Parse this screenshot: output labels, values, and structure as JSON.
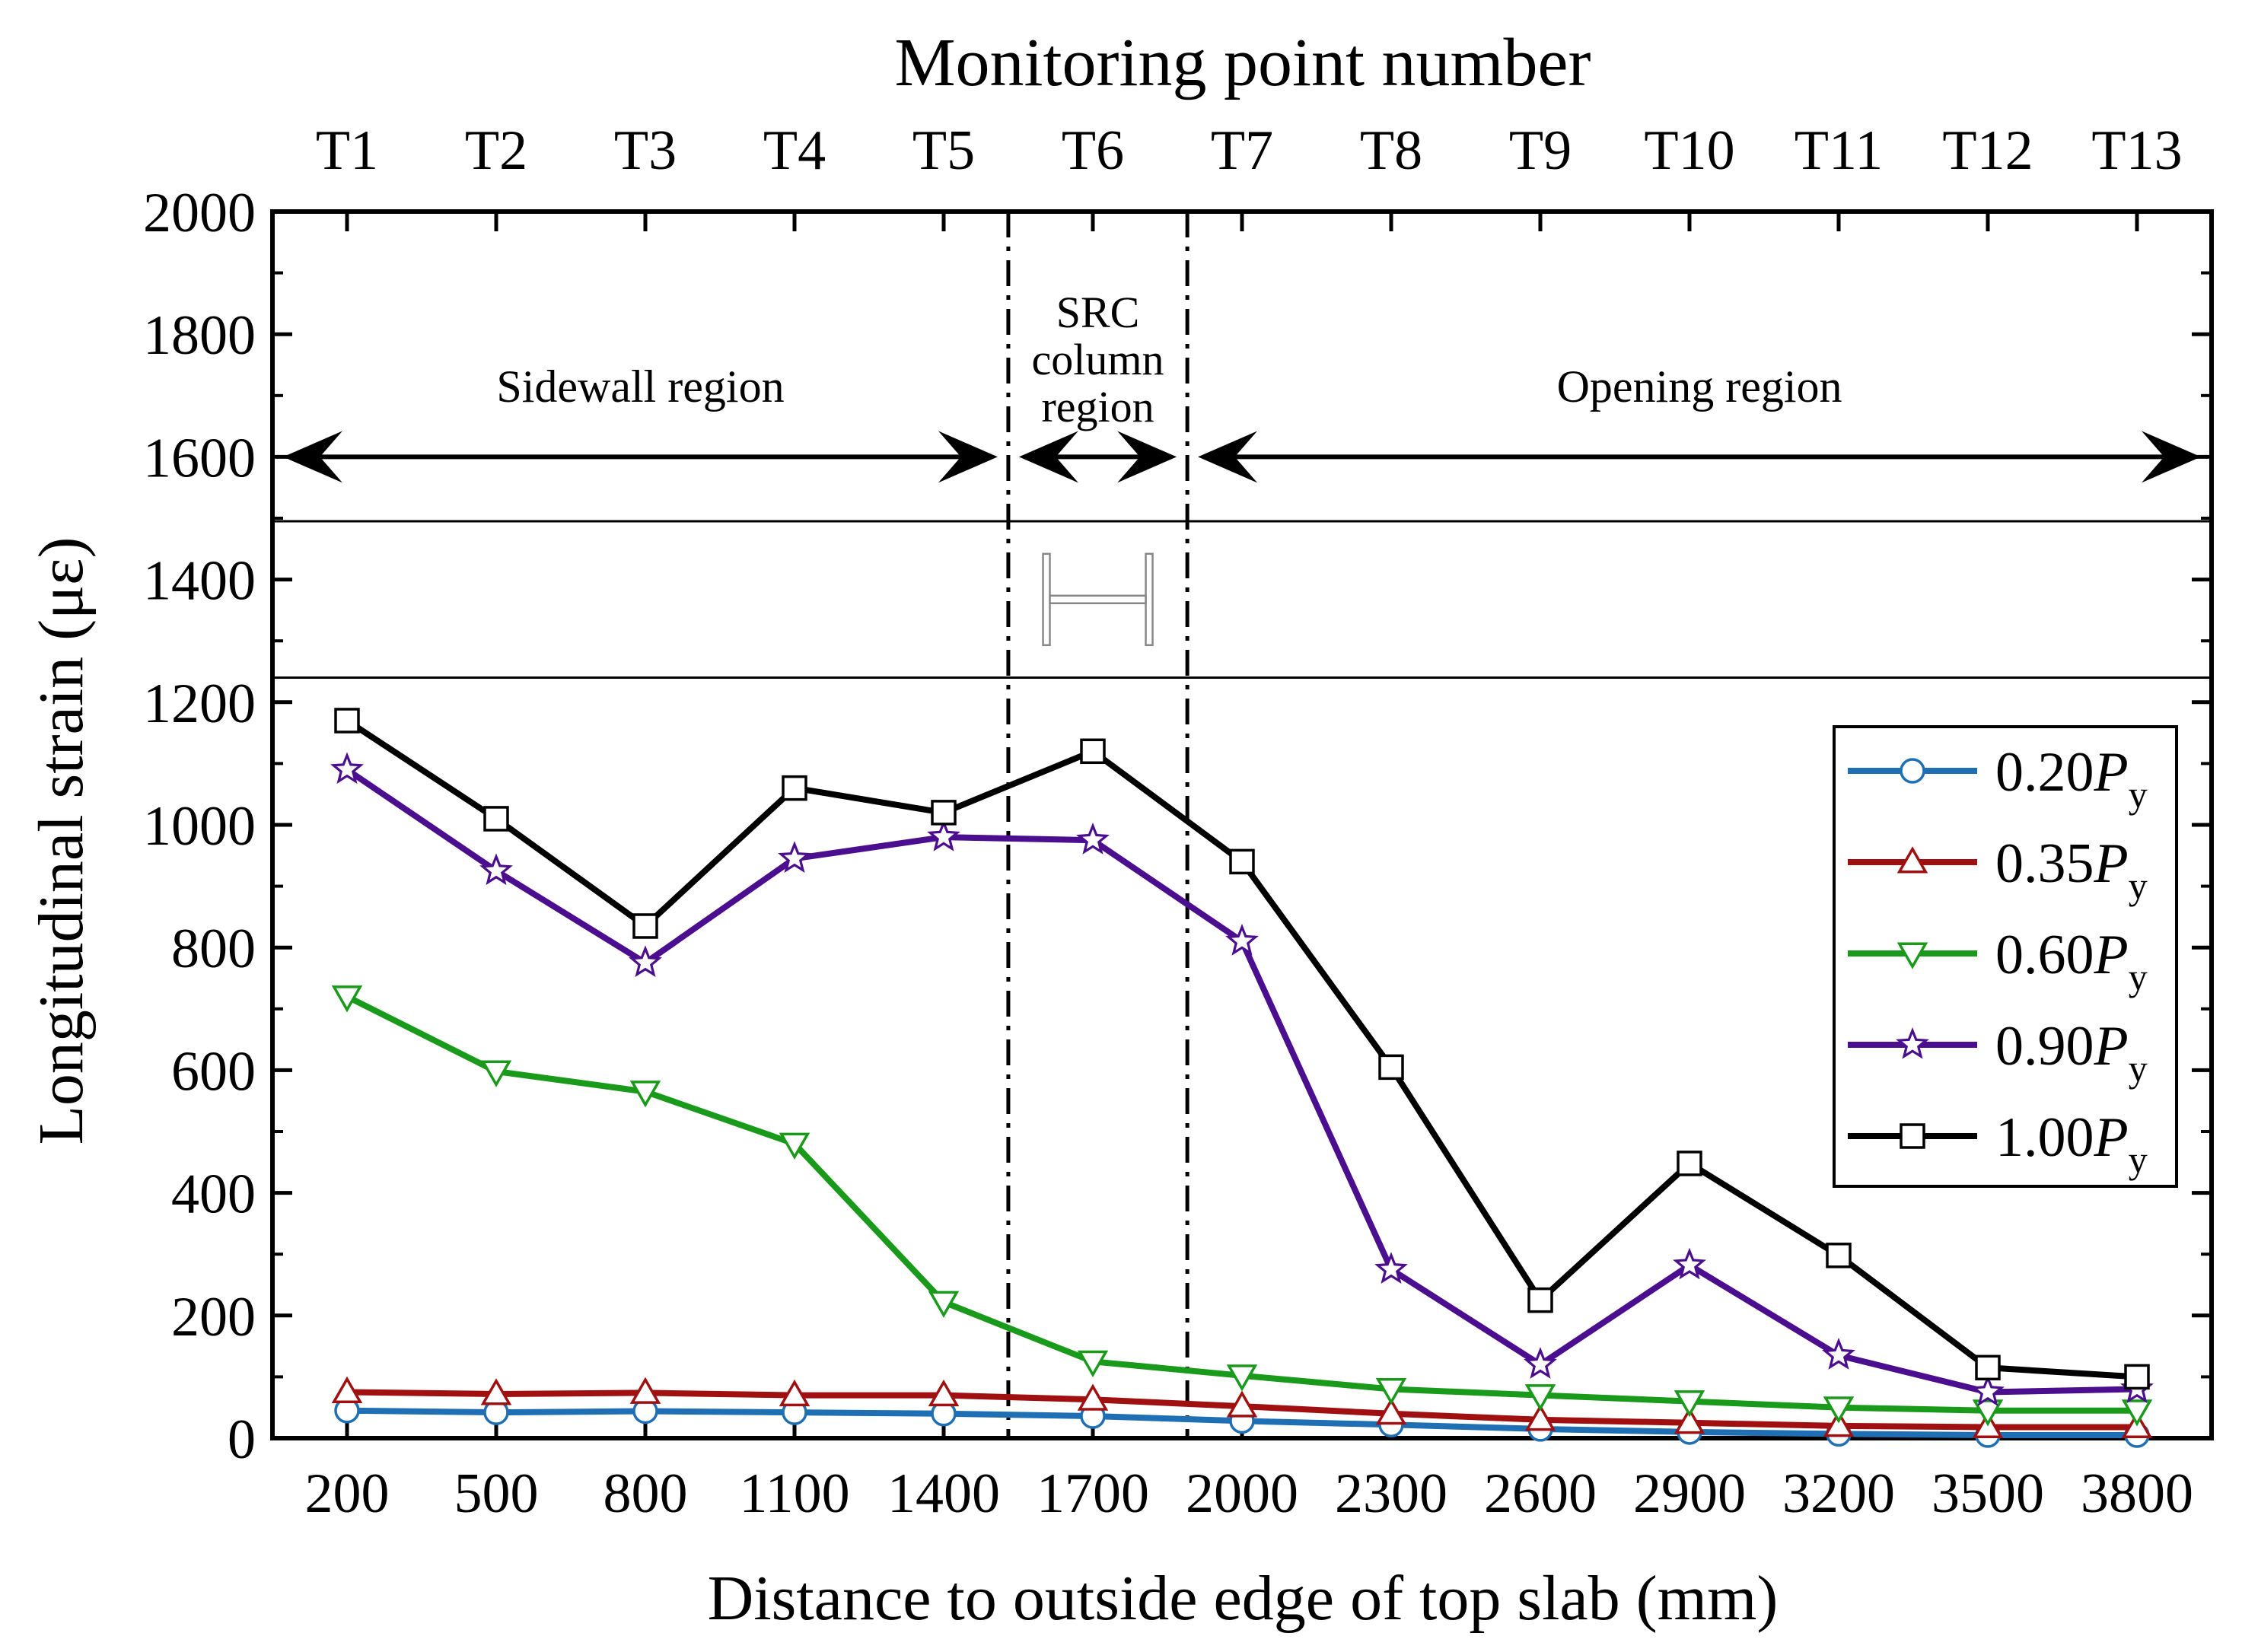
{
  "chart_data": {
    "type": "line",
    "title": "",
    "top_axis_title": "Monitoring point number",
    "top_tick_labels": [
      "T1",
      "T2",
      "T3",
      "T4",
      "T5",
      "T6",
      "T7",
      "T8",
      "T9",
      "T10",
      "T11",
      "T12",
      "T13"
    ],
    "xlabel": "Distance to outside edge of top slab (mm)",
    "ylabel": "Longitudinal strain (με)",
    "x": [
      200,
      500,
      800,
      1100,
      1400,
      1700,
      2000,
      2300,
      2600,
      2900,
      3200,
      3500,
      3800
    ],
    "x_tick_labels": [
      "200",
      "500",
      "800",
      "1100",
      "1400",
      "1700",
      "2000",
      "2300",
      "2600",
      "2900",
      "3200",
      "3500",
      "3800"
    ],
    "ylim": [
      0,
      2000
    ],
    "y_ticks": [
      0,
      200,
      400,
      600,
      800,
      1000,
      1200,
      1400,
      1600,
      1800,
      2000
    ],
    "grid": false,
    "legend_position": "right",
    "series": [
      {
        "name": "0.20",
        "name_symbol": "P",
        "name_subscript": "y",
        "color": "#1f6fb5",
        "marker": "circle",
        "values": [
          45,
          42,
          44,
          42,
          40,
          36,
          28,
          22,
          15,
          10,
          7,
          5,
          5
        ]
      },
      {
        "name": "0.35",
        "name_symbol": "P",
        "name_subscript": "y",
        "color": "#a01010",
        "marker": "triangle-up",
        "values": [
          75,
          72,
          74,
          70,
          70,
          63,
          52,
          40,
          30,
          25,
          20,
          18,
          18
        ]
      },
      {
        "name": "0.60",
        "name_symbol": "P",
        "name_subscript": "y",
        "color": "#1a9a1a",
        "marker": "triangle-down",
        "values": [
          720,
          598,
          565,
          480,
          222,
          125,
          102,
          80,
          70,
          60,
          50,
          45,
          45
        ]
      },
      {
        "name": "0.90",
        "name_symbol": "P",
        "name_subscript": "y",
        "color": "#4b0e8e",
        "marker": "star",
        "values": [
          1090,
          925,
          775,
          945,
          980,
          975,
          810,
          275,
          120,
          282,
          135,
          75,
          80
        ]
      },
      {
        "name": "1.00",
        "name_symbol": "P",
        "name_subscript": "y",
        "color": "#000000",
        "marker": "square",
        "values": [
          1170,
          1010,
          835,
          1060,
          1020,
          1120,
          940,
          605,
          225,
          448,
          298,
          115,
          100
        ]
      }
    ],
    "regions": [
      {
        "label_lines": [
          "Sidewall region"
        ],
        "from_x": 50,
        "to_x": 1530
      },
      {
        "label_lines": [
          "SRC",
          "column",
          "region"
        ],
        "from_x": 1530,
        "to_x": 1890
      },
      {
        "label_lines": [
          "Opening region"
        ],
        "from_x": 1890,
        "to_x": 3950
      }
    ],
    "region_boundaries_x": [
      1530,
      1890
    ],
    "section_band_y": [
      1240,
      1495
    ]
  }
}
